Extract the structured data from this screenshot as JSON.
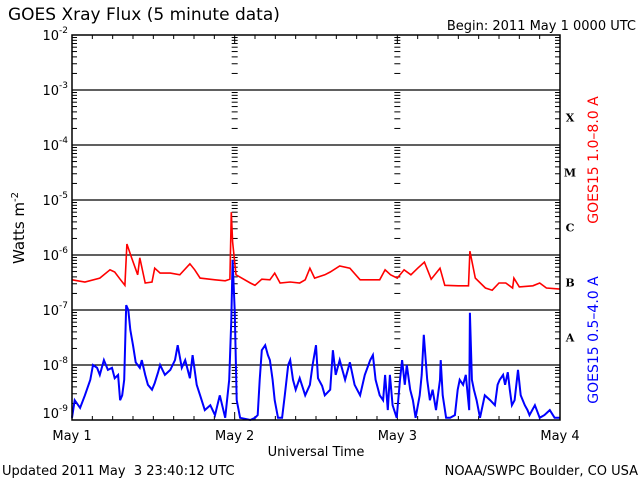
{
  "chart_data": {
    "type": "line",
    "title": "GOES Xray Flux (5 minute data)",
    "begin_label": "Begin:  2011 May 1 0000 UTC",
    "xlabel": "Universal Time",
    "ylabel": "Watts m",
    "ylabel_exp": "-2",
    "y_scale": "log10",
    "ylim_log10": [
      -9,
      -2
    ],
    "xlim_hours": [
      0,
      72
    ],
    "x_ticks": [
      {
        "label": "May 1",
        "hour": 0
      },
      {
        "label": "May 2",
        "hour": 24
      },
      {
        "label": "May 3",
        "hour": 48
      },
      {
        "label": "May 4",
        "hour": 72
      }
    ],
    "y_ticks": [
      {
        "base": "10",
        "exp": "-2",
        "log": -2
      },
      {
        "base": "10",
        "exp": "-3",
        "log": -3
      },
      {
        "base": "10",
        "exp": "-4",
        "log": -4
      },
      {
        "base": "10",
        "exp": "-5",
        "log": -5
      },
      {
        "base": "10",
        "exp": "-6",
        "log": -6
      },
      {
        "base": "10",
        "exp": "-7",
        "log": -7
      },
      {
        "base": "10",
        "exp": "-8",
        "log": -8
      },
      {
        "base": "10",
        "exp": "-9",
        "log": -9
      }
    ],
    "flare_classes": [
      {
        "label": "X",
        "log": -3.5
      },
      {
        "label": "M",
        "log": -4.5
      },
      {
        "label": "C",
        "log": -5.5
      },
      {
        "label": "B",
        "log": -6.5
      },
      {
        "label": "A",
        "log": -7.5
      }
    ],
    "grid": true,
    "series": [
      {
        "name": "GOES15 1.0–8.0 A",
        "color": "#ff0000",
        "hours": [
          0,
          1.9,
          4.1,
          5.6,
          6.3,
          7.1,
          7.8,
          8.1,
          8.8,
          9.7,
          10.0,
          10.8,
          11.8,
          12.2,
          13.0,
          14.5,
          15.9,
          17.4,
          18.1,
          18.9,
          21.1,
          22.6,
          23.3,
          23.5,
          23.7,
          24.2,
          26.3,
          27.0,
          28.0,
          29.2,
          29.9,
          30.7,
          32.2,
          33.6,
          34.4,
          35.1,
          35.8,
          37.3,
          38.1,
          39.5,
          41.0,
          42.5,
          45.4,
          46.2,
          47.0,
          48,
          49,
          50,
          51,
          52,
          53,
          54.3,
          55,
          57,
          58.5,
          58.7,
          59.5,
          61,
          62,
          63,
          64,
          65,
          65.2,
          66,
          68,
          69,
          70,
          72
        ],
        "log_flux": [
          -6.45,
          -6.49,
          -6.42,
          -6.27,
          -6.31,
          -6.44,
          -6.55,
          -5.8,
          -6.05,
          -6.36,
          -6.05,
          -6.51,
          -6.49,
          -6.24,
          -6.33,
          -6.33,
          -6.36,
          -6.16,
          -6.27,
          -6.42,
          -6.45,
          -6.47,
          -6.44,
          -5.22,
          -5.76,
          -6.36,
          -6.51,
          -6.55,
          -6.44,
          -6.45,
          -6.33,
          -6.51,
          -6.49,
          -6.51,
          -6.45,
          -6.24,
          -6.42,
          -6.36,
          -6.31,
          -6.2,
          -6.24,
          -6.45,
          -6.45,
          -6.27,
          -6.36,
          -6.42,
          -6.27,
          -6.36,
          -6.24,
          -6.13,
          -6.44,
          -6.24,
          -6.55,
          -6.56,
          -6.56,
          -5.93,
          -6.42,
          -6.6,
          -6.64,
          -6.51,
          -6.51,
          -6.6,
          -6.42,
          -6.58,
          -6.56,
          -6.51,
          -6.6,
          -6.62
        ]
      },
      {
        "name": "GOES15 0.5–4.0 A",
        "color": "#0000ff",
        "hours": [
          0,
          0.4,
          1.2,
          1.9,
          2.7,
          3.1,
          3.7,
          4.1,
          4.7,
          5.3,
          5.9,
          6.3,
          6.8,
          7.1,
          7.4,
          7.7,
          8.0,
          8.3,
          8.6,
          9.0,
          9.4,
          10.0,
          10.3,
          10.8,
          11.2,
          11.8,
          12.2,
          12.7,
          13.0,
          13.7,
          14.5,
          15.2,
          15.6,
          16.2,
          16.7,
          17.4,
          17.8,
          18.4,
          18.9,
          19.6,
          20.4,
          21.1,
          21.8,
          22.6,
          23.2,
          23.5,
          23.7,
          24.0,
          24.3,
          24.8,
          26.3,
          27.0,
          27.4,
          27.7,
          28.0,
          28.5,
          28.9,
          29.2,
          29.6,
          29.9,
          30.4,
          31.0,
          31.4,
          31.9,
          32.2,
          32.6,
          33.0,
          33.6,
          34.4,
          35.1,
          35.5,
          36.0,
          36.3,
          36.9,
          37.3,
          38.1,
          38.5,
          38.9,
          39.5,
          40.3,
          41.0,
          41.7,
          42.5,
          43.2,
          44.0,
          44.4,
          44.8,
          45.4,
          45.9,
          46.2,
          46.6,
          46.9,
          47.3,
          47.9,
          48.4,
          48.7,
          49.1,
          49.4,
          49.9,
          50.3,
          50.7,
          51.3,
          51.6,
          51.9,
          52.4,
          52.8,
          53.2,
          53.7,
          54.3,
          54.4,
          54.7,
          55.2,
          55.8,
          56.5,
          56.9,
          57.2,
          57.7,
          58.1,
          58.6,
          58.7,
          59.0,
          59.3,
          59.7,
          60.2,
          60.9,
          61.7,
          62.4,
          62.8,
          63.1,
          63.6,
          63.9,
          64.3,
          64.6,
          64.9,
          65.3,
          65.8,
          66.2,
          66.8,
          67.2,
          67.5,
          68.3,
          69.0,
          69.7,
          70.5,
          71.2,
          72
        ],
        "log_flux": [
          -8.96,
          -8.64,
          -8.78,
          -8.55,
          -8.27,
          -8.0,
          -8.05,
          -8.18,
          -7.91,
          -8.09,
          -8.05,
          -8.24,
          -8.18,
          -8.64,
          -8.55,
          -8.27,
          -6.91,
          -7.0,
          -7.36,
          -7.64,
          -7.95,
          -8.05,
          -7.91,
          -8.18,
          -8.36,
          -8.45,
          -8.33,
          -8.13,
          -8.0,
          -8.18,
          -8.09,
          -7.91,
          -7.64,
          -8.05,
          -7.91,
          -8.24,
          -7.82,
          -8.36,
          -8.55,
          -8.82,
          -8.73,
          -8.91,
          -8.55,
          -8.96,
          -8.27,
          -7.18,
          -6.09,
          -7.0,
          -8.64,
          -8.96,
          -9.0,
          -8.96,
          -8.91,
          -8.27,
          -7.73,
          -7.64,
          -7.82,
          -7.91,
          -8.27,
          -8.64,
          -8.96,
          -8.96,
          -8.55,
          -8.0,
          -7.91,
          -8.27,
          -8.45,
          -8.24,
          -8.55,
          -8.36,
          -8.0,
          -7.64,
          -8.24,
          -8.38,
          -8.55,
          -8.45,
          -7.73,
          -8.18,
          -7.91,
          -8.27,
          -7.95,
          -8.36,
          -8.55,
          -8.18,
          -7.91,
          -7.82,
          -8.27,
          -8.55,
          -8.64,
          -8.18,
          -8.82,
          -8.18,
          -8.73,
          -8.96,
          -8.27,
          -7.91,
          -8.36,
          -8.0,
          -8.45,
          -8.64,
          -8.96,
          -8.55,
          -8.18,
          -7.45,
          -8.27,
          -8.64,
          -8.45,
          -8.82,
          -8.27,
          -7.91,
          -8.55,
          -8.96,
          -8.96,
          -8.91,
          -8.45,
          -8.27,
          -8.36,
          -8.18,
          -8.82,
          -7.05,
          -8.27,
          -8.45,
          -8.64,
          -8.96,
          -8.55,
          -8.64,
          -8.73,
          -8.36,
          -8.27,
          -8.18,
          -8.36,
          -8.13,
          -8.45,
          -8.73,
          -8.64,
          -8.09,
          -8.55,
          -8.73,
          -8.82,
          -8.91,
          -8.73,
          -8.96,
          -8.91,
          -8.82,
          -8.96,
          -8.96
        ]
      }
    ]
  },
  "footer": {
    "updated": "Updated 2011 May  3 23:40:12 UTC",
    "credit": "NOAA/SWPC Boulder, CO USA"
  }
}
